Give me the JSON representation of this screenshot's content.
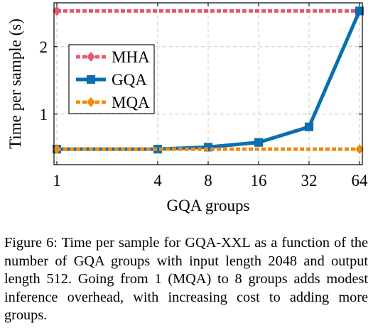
{
  "chart_data": {
    "type": "line",
    "xlabel": "GQA groups",
    "ylabel": "Time per sample (s)",
    "xscale": "log2",
    "xlim": [
      1,
      64
    ],
    "ylim": [
      0.25,
      2.65
    ],
    "x_ticks": [
      1,
      4,
      8,
      16,
      32,
      64
    ],
    "x_tick_labels": [
      "1",
      "4",
      "8",
      "16",
      "32",
      "64"
    ],
    "y_ticks": [
      1,
      2
    ],
    "y_tick_labels": [
      "1",
      "2"
    ],
    "grid": true,
    "legend_position": "left",
    "series": [
      {
        "name": "MHA",
        "color": "#e8596d",
        "style": "dotted",
        "marker": "diamond",
        "x": [
          1,
          64
        ],
        "y": [
          2.53,
          2.53
        ]
      },
      {
        "name": "GQA",
        "color": "#0a6fb0",
        "style": "solid",
        "marker": "square",
        "x": [
          1,
          4,
          8,
          16,
          32,
          64
        ],
        "y": [
          0.48,
          0.48,
          0.51,
          0.58,
          0.81,
          2.53
        ]
      },
      {
        "name": "MQA",
        "color": "#f08a10",
        "style": "dotted",
        "marker": "diamond",
        "x": [
          1,
          64
        ],
        "y": [
          0.48,
          0.48
        ]
      }
    ]
  },
  "caption": "Figure 6: Time per sample for GQA-XXL as a function of the number of GQA groups with input length 2048 and output length 512. Going from 1 (MQA) to 8 groups adds modest inference overhead, with increasing cost to adding more groups."
}
